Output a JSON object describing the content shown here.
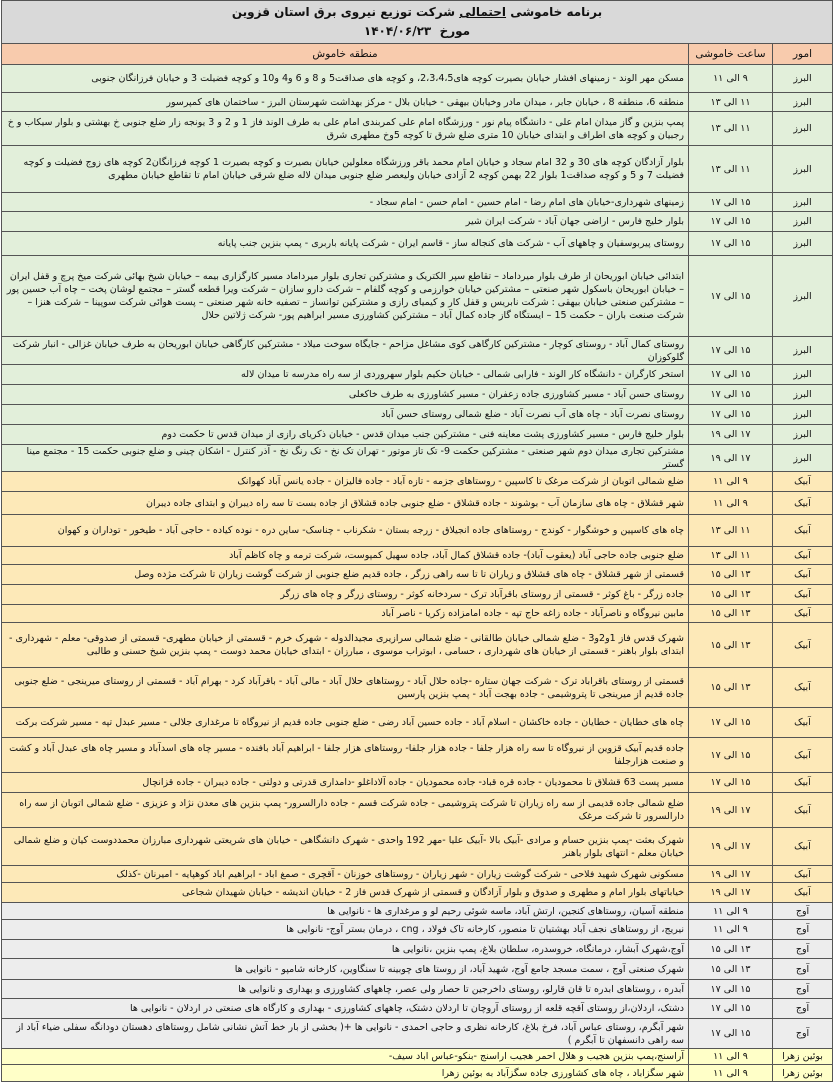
{
  "header": {
    "title_prefix": "برنامه خاموشی",
    "title_emphasis": "احتمالی",
    "title_suffix": "شرکت توزیع نیروی برق استان قزوین",
    "date_label": "مورخ",
    "date": "۱۴۰۴/۰۶/۲۳"
  },
  "columns": {
    "omur": "امور",
    "time": "ساعت خاموشی",
    "area": "منطقه خاموش"
  },
  "group_colors": {
    "البرز": "#e2efda",
    "آبیک": "#fde9b8",
    "آوج": "#ededed",
    "بوئین زهرا": "#ffffc8"
  },
  "rows": [
    {
      "omur": "البرز",
      "time": "۹ الی ۱۱",
      "area": "مسکن مهر الوند  -  زمینهای افشار خیابان بصیرت کوچه های2،3،4،5، و کوچه های صداقت5 و 8 و 6 و4 و10 و کوچه فضیلت 3 و خیابان فرزانگان جنوبی"
    },
    {
      "omur": "البرز",
      "time": "۱۱ الی ۱۳",
      "area": "منطقه 6، منطقه 8 ، خیابان جابر ، میدان مادر وخیابان بیهقی - خیابان بلال - مرکز بهداشت شهرستان البرز - ساختمان های کمپرسور"
    },
    {
      "omur": "البرز",
      "time": "۱۱ الی ۱۳",
      "area": "پمپ بنزین و گاز میدان امام علی - دانشگاه پیام نور - ورزشگاه امام علی  کمربندی امام علی به طرف الوند فاز 1 و 2 و 3 یونجه زار ضلع جنوبی خ بهشتی و بلوار سیکاب و خ رجبیان و کوچه های اطراف و ابتدای خیابان 10 متری ضلع شرق تا کوچه 5وخ مطهری شرق"
    },
    {
      "omur": "البرز",
      "time": "۱۱ الی ۱۳",
      "area": "بلوار آزادگان کوچه های 30 و 32  امام سجاد و خیابان امام محمد باقر ورزشگاه معلولین خیابان بصیرت و کوچه بصیرت 1 کوچه فرزانگان2 کوچه های زوج فضیلت و کوچه فضیلت 7 و 5 و کوچه صداقت1 بلوار 22 بهمن کوچه 2 آزادی خیابان ولیعصر ضلع جنوبی میدان لاله ضلع شرقی خیابان امام تا تقاطع خیابان مطهری"
    },
    {
      "omur": "البرز",
      "time": "۱۵ الی ۱۷",
      "area": "زمینهای شهرداری-خیابان های امام رضا - امام حسین - امام حسن - امام سجاد -"
    },
    {
      "omur": "البرز",
      "time": "۱۵ الی ۱۷",
      "area": "بلوار خلیج فارس - اراضی جهان آباد -  شرکت ایران شیر"
    },
    {
      "omur": "البرز",
      "time": "۱۵ الی ۱۷",
      "area": "روستای پیربوسفیان  و چاههای آب - شرکت های کنجاله ساز - قاسم ایران - شرکت پایانه باربری - پمپ بنزین جنب پایانه"
    },
    {
      "omur": "البرز",
      "time": "۱۵ الی ۱۷",
      "area": "ابتدائی خیابان ابوریحان از طرف بلوار میرداماد – تقاطع سپر الکتریک و مشترکین تجاری بلوار میرداماد مسیر کارگزاری بیمه – خیابان شیخ بهائی شرکت میخ پرچ و قفل ایران – خیابان ابوریحان باسکول شهر صنعتی – مشترکین خیابان خوارزمی و کوچه گلفام – شرکت دارو سازان – شرکت ویرا قطعه گستر – مجتمع لوشان پخت – چاه آب حسین پور – مشترکین صنعتی خیابان بیهقی : شرکت نابریس و قفل کار و کیمیای رازی و مشترکین توانساز – تصفیه خانه شهر صنعتی – پست هوائی شرکت سوپینا – شرکت هنزا – شرکت صنعت باران – حکمت 15 – ایستگاه گاز جاده کمال آباد – مشترکین کشاورزی مسیر ابراهیم پور- شرکت ژلاتین حلال"
    },
    {
      "omur": "البرز",
      "time": "۱۵ الی ۱۷",
      "area": "روستای کمال آباد - روستای کوچار - مشترکین کارگاهی کوی مشاغل مزاحم - جایگاه سوخت میلاد - مشترکین کارگاهی خیابان ابوریحان به طرف خیابان غزالی - انبار شرکت گلوکوزان"
    },
    {
      "omur": "البرز",
      "time": "۱۵ الی ۱۷",
      "area": "استخر کارگران - دانشگاه کار الوند - فارابی شمالی  - خیابان حکیم بلوار سهروردی از سه راه مدرسه تا میدان لاله"
    },
    {
      "omur": "البرز",
      "time": "۱۵ الی ۱۷",
      "area": "روستای حسن آباد -  مسیر کشاورزی جاده زعفران  - مسیر کشاورزی به طرف خاکعلی"
    },
    {
      "omur": "البرز",
      "time": "۱۵ الی ۱۷",
      "area": "روستای نصرت آباد - چاه های آب نصرت آباد - ضلع شمالی روستای حسن آباد"
    },
    {
      "omur": "البرز",
      "time": "۱۷ الی ۱۹",
      "area": "بلوار خلیج فارس - مسیر کشاورزی پشت معاینه فنی - مشترکین جنب میدان قدس -  خیابان ذکریای رازی از میدان قدس تا حکمت دوم"
    },
    {
      "omur": "البرز",
      "time": "۱۷ الی ۱۹",
      "area": "مشترکین تجاری میدان دوم شهر صنعتی - مشترکین حکمت 9- تک تاز موتور - تهران تک نخ - تک رنگ نخ - آذر کنترل - اشکان چینی و ضلع جنوبی حکمت 15  - مجتمع مینا گستر"
    },
    {
      "omur": "آبیک",
      "time": "۹ الی ۱۱",
      "area": "ضلع شمالی اتوبان از شرکت مرغک تا کاسپین - روستاهای جزمه - تازه آباد - جاده فالیزان - جاده یانس آباد کهوانک"
    },
    {
      "omur": "آبیک",
      "time": "۹ الی ۱۱",
      "area": "شهر قشلاق - چاه های سازمان آب - بوشوند - جاده قشلاق - ضلع جنوبی جاده قشلاق از جاده بست تا سه راه دیبران و ابتدای جاده دیبران"
    },
    {
      "omur": "آبیک",
      "time": "۱۱ الی ۱۳",
      "area": "چاه های کاسپین و خوشگوار - کوندج - روستاهای جاده انجیلاق - زرجه بستان - شکرناب - چناسک- ساین دره - نوده کیاده - حاجی آباد - طیخور - توداران و کهوان"
    },
    {
      "omur": "آبیک",
      "time": "۱۱ الی ۱۳",
      "area": "ضلع جنوبی جاده حاجی آباد (یعقوب آباد)- جاده قشلاق کمال آباد، جاده سهیل کمپوست، شرکت ترمه و چاه کاظم آباد"
    },
    {
      "omur": "آبیک",
      "time": "۱۳ الی ۱۵",
      "area": "قسمتی از شهر قشلاق - چاه های قشلاق و زیاران تا تا سه راهی زرگر ، جاده قدیم ضلع جنوبی از شرکت گوشت زیاران تا شرکت مژده وصل"
    },
    {
      "omur": "آبیک",
      "time": "۱۳ الی ۱۵",
      "area": "جاده زرگر - باغ کوثر - قسمتی از روستای باقرآباد ترک - سردخانه کوثر - روستای زرگر و چاه های زرگر"
    },
    {
      "omur": "آبیک",
      "time": "۱۳ الی ۱۵",
      "area": "مابین نیروگاه و ناصرآباد - جاده زاغه حاج تپه - جاده امامزاده زکریا - ناصر آباد"
    },
    {
      "omur": "آبیک",
      "time": "۱۳ الی ۱۵",
      "area": "شهرک قدس فاز 1و2و3 - ضلع شمالی خیابان طالقانی - ضلع شمالی سرازیری مجیدالدوله - شهرک خرم - قسمتی از خیابان مطهری- قسمتی از صدوقی- معلم - شهرداری - ابتدای بلوار باهنر - قسمتی از خیابان های شهرداری ، حسامی ، ابوتراب موسوی ، مبارزان - ابتدای خیابان محمد دوست - پمپ بنزین شیخ حسنی و طالبی"
    },
    {
      "omur": "آبیک",
      "time": "۱۳ الی ۱۵",
      "area": "قسمتی از روستای باقراباد ترک - شرکت جهان ستاره -جاده حلال آباد - روستاهای حلال آباد - مالی آباد - باقرآباد کرد - بهرام آباد - قسمتی از روستای میرینجی - ضلع جنوبی جاده قدیم از میرینجی تا پتروشیمی - جاده بهجت آباد - پمپ بنزین پارسین"
    },
    {
      "omur": "آبیک",
      "time": "۱۵ الی ۱۷",
      "area": "چاه های خطایان  - خطایان - جاده خاکشان - اسلام آباد - جاده حسین آباد رضی - ضلع جنوبی جاده قدیم از نیروگاه تا مرغداری جلالی - مسیر عبدل تپه - مسیر شرکت برکت"
    },
    {
      "omur": "آبیک",
      "time": "۱۵ الی ۱۷",
      "area": "جاده قدیم آبیک قزوین از نیروگاه تا سه راه هزار جلفا - جاده هزار جلفا- روستاهای هزار جلفا - ابراهیم آباد بافنده - مسیر چاه های اسدآباد و مسیر چاه های عبدل آباد و کشت و صنعت هزارجلفا"
    },
    {
      "omur": "آبیک",
      "time": "۱۵ الی ۱۷",
      "area": "مسیر پست 63 قشلاق تا محمودیان - جاده قره قباد- جاده محمودیان - جاده آلاداغلو -دامداری قدرتی و دولتی - جاده دیبران - جاده قزانچال"
    },
    {
      "omur": "آبیک",
      "time": "۱۷ الی ۱۹",
      "area": "ضلع شمالی جاده قدیمی از سه راه زیاران تا شرکت پتروشیمی - جاده شرکت قسم - جاده دارالسرور- پمپ بنزین های معدن نژاد و عزیزی - ضلع شمالی اتوبان از سه راه دارالسرور تا شرکت مرغک"
    },
    {
      "omur": "آبیک",
      "time": "۱۷ الی ۱۹",
      "area": "شهرک بعثت -پمپ بنزین حسام و مرادی -آبیک بالا -آبیک علیا -مهر 192 واحدی - شهرک دانشگاهی  - خیابان های شریعتی شهرداری مبارزان محمددوست کیان و ضلع شمالی خیابان معلم -  انتهای بلوار باهنر"
    },
    {
      "omur": "آبیک",
      "time": "۱۷ الی ۱۹",
      "area": "مسکونی شهرک شهید فلاحی - شرکت گوشت زیاران - شهر زیاران - روستاهای خوزنان - آقچری - صمغ اباد - ابراهیم اباد کوهپایه - امیرنان -کذلک"
    },
    {
      "omur": "آبیک",
      "time": "۱۷ الی ۱۹",
      "area": "خیاباتهای بلوار امام و مطهری و صدوق و بلوار آزادگان و قسمتی از شهرک قدس فاز 2 - خیابان اندیشه - خیابان شهیدان شجاعی"
    },
    {
      "omur": "آوج",
      "time": "۹ الی ۱۱",
      "area": "منطقه آسیان، روستاهای کنجین، ارتش آباد، ماسه شوئی رحیم لو و مرغداری ها  - نانوایی ها"
    },
    {
      "omur": "آوج",
      "time": "۹ الی ۱۱",
      "area": "نیریج، از روستاهای نجف آباد بهشتیان تا منصور، کارخانه تاک فولاد ، cng ،  درمان بستر آوج- نانوایی ها"
    },
    {
      "omur": "آوج",
      "time": "۱۳ الی ۱۵",
      "area": "آوج،شهرک آبشار، درمانگاه، خروسدره، سلطان بلاغ، پمپ بنزین ،نانوایی ها"
    },
    {
      "omur": "آوج",
      "time": "۱۳ الی ۱۵",
      "area": "شهرک صنعتی آوج ، سمت مسجد جامع آوج، شهید آباد،  از روستا های چوبینه تا سنگاوین، کارخانه شامپو - نانوایی ها"
    },
    {
      "omur": "آوج",
      "time": "۱۵ الی ۱۷",
      "area": "آبدره ، روستاهای ابدره تا قان قارلو، روستای داخرجین تا حصار ولی عصر، چاههای کشاورزی و بهداری و  نانوایی ها"
    },
    {
      "omur": "آوج",
      "time": "۱۵ الی ۱۷",
      "area": "دشتک، اردلان،از روستای آقچه قلعه از روستای آروچان تا اردلان دشتک، چاههای کشاورزی - بهداری و کارگاه های صنعتی در اردلان  - نانوایی ها"
    },
    {
      "omur": "آوج",
      "time": "۱۵ الی ۱۷",
      "area": "شهر آبگرم، روستای عباس آباد، فرخ بلاغ، کارخانه نظری و حاجی احمدی - نانوایی ها +( بخشی از بار خط آتش نشانی شامل روستاهای دهستان دودانگه سفلی ضیاء آباد از سه راهی دانسفهان تا آبگرم )"
    },
    {
      "omur": "بوئین زهرا",
      "time": "۹ الی ۱۱",
      "area": "آراسنج،پمپ بنزین هجیب و هلال احمر هجیب اراسنج -بنکو-عباس اباد سیف-"
    },
    {
      "omur": "بوئین زهرا",
      "time": "۹ الی ۱۱",
      "area": "شهر سگزاباد ، چاه های کشاورزی جاده سگزآباد به بوئین زهرا"
    }
  ]
}
